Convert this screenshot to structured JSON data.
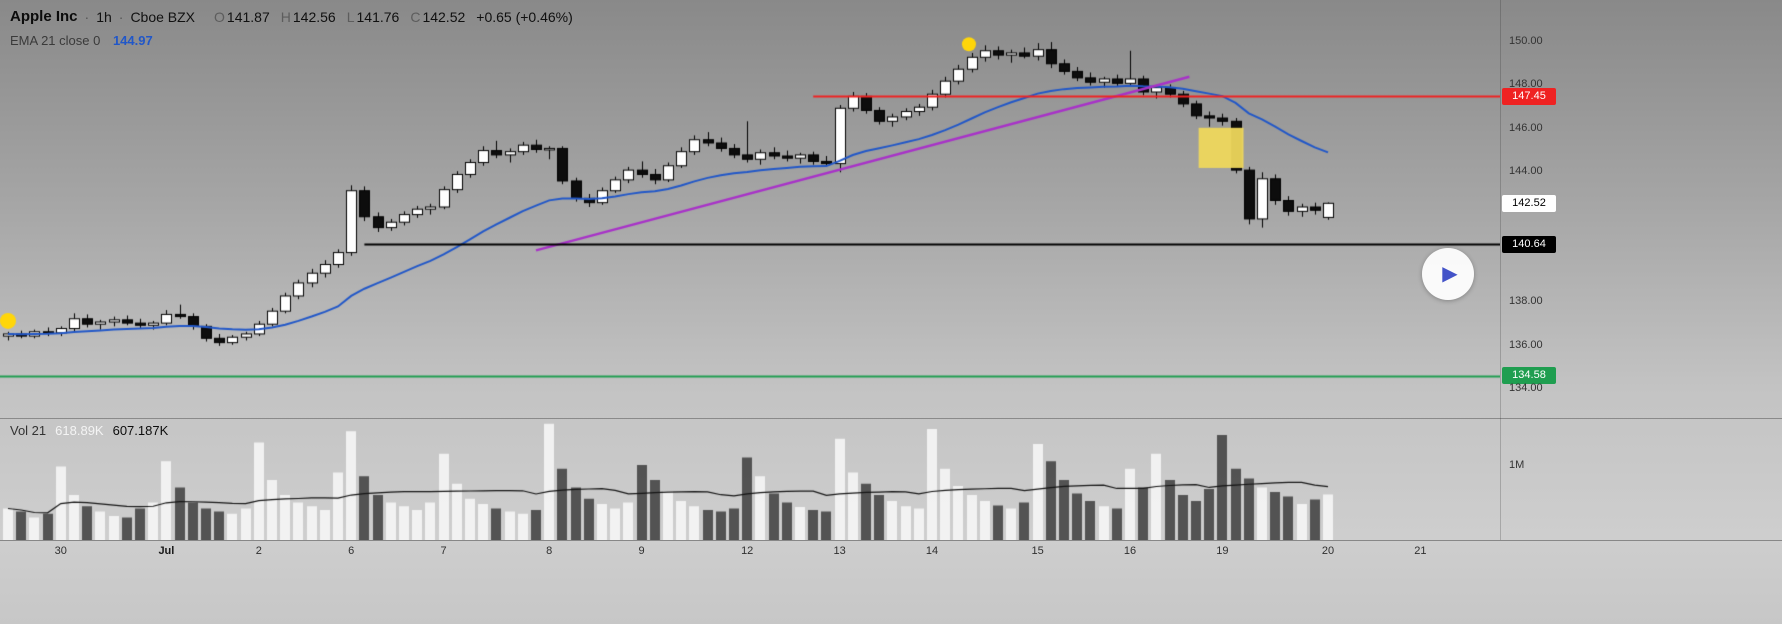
{
  "header": {
    "symbol": "Apple Inc",
    "separator": "·",
    "timeframe": "1h",
    "exchange": "Cboe BZX",
    "ohlc": [
      {
        "label": "O",
        "value": "141.87"
      },
      {
        "label": "H",
        "value": "142.56"
      },
      {
        "label": "L",
        "value": "141.76"
      },
      {
        "label": "C",
        "value": "142.52"
      }
    ],
    "change": "+0.65 (+0.46%)"
  },
  "indicator_legend": {
    "name": "EMA 21 close 0",
    "value": "144.97",
    "value_color": "#2157c8"
  },
  "volume_legend": {
    "name": "Vol 21",
    "ma_value": "618.89K",
    "last_value": "607.187K"
  },
  "price_axis": {
    "ticks": [
      {
        "text": "150.00",
        "price": 150
      },
      {
        "text": "148.00",
        "price": 148
      },
      {
        "text": "146.00",
        "price": 146
      },
      {
        "text": "144.00",
        "price": 144
      },
      {
        "text": "138.00",
        "price": 138
      },
      {
        "text": "136.00",
        "price": 136
      },
      {
        "text": "134.00",
        "price": 134
      }
    ],
    "badges": [
      {
        "text": "147.45",
        "price": 147.45,
        "bg": "#ef2222",
        "fg": "#ffffff"
      },
      {
        "text": "142.52",
        "price": 142.52,
        "bg": "#ffffff",
        "fg": "#000000"
      },
      {
        "text": "140.64",
        "price": 140.64,
        "bg": "#000000",
        "fg": "#ffffff"
      },
      {
        "text": "134.58",
        "price": 134.58,
        "bg": "#1f9e50",
        "fg": "#ffffff"
      }
    ],
    "volume_tick": "1M"
  },
  "time_axis": {
    "labels": [
      {
        "text": "30",
        "index": 4
      },
      {
        "text": "Jul",
        "index": 12,
        "bold": true
      },
      {
        "text": "2",
        "index": 19
      },
      {
        "text": "6",
        "index": 26
      },
      {
        "text": "7",
        "index": 33
      },
      {
        "text": "8",
        "index": 41
      },
      {
        "text": "9",
        "index": 48
      },
      {
        "text": "12",
        "index": 56
      },
      {
        "text": "13",
        "index": 63
      },
      {
        "text": "14",
        "index": 70
      },
      {
        "text": "15",
        "index": 78
      },
      {
        "text": "16",
        "index": 85
      },
      {
        "text": "19",
        "index": 92
      },
      {
        "text": "20",
        "index": 100
      },
      {
        "text": "21",
        "index": 107
      }
    ]
  },
  "play_button": {
    "symbol": "▶",
    "color": "#4353c8"
  },
  "chart_data": {
    "type": "candlestick",
    "symbol": "Apple Inc",
    "interval": "1h",
    "exchange": "Cboe BZX",
    "price_range_visible": [
      134.0,
      150.0
    ],
    "candles": [
      [
        136.4,
        136.6,
        136.2,
        136.5
      ],
      [
        136.5,
        136.65,
        136.3,
        136.4
      ],
      [
        136.4,
        136.7,
        136.3,
        136.6
      ],
      [
        136.6,
        136.8,
        136.4,
        136.55
      ],
      [
        136.55,
        136.85,
        136.4,
        136.75
      ],
      [
        136.75,
        137.45,
        136.6,
        137.2
      ],
      [
        137.2,
        137.4,
        136.8,
        136.95
      ],
      [
        136.95,
        137.15,
        136.7,
        137.05
      ],
      [
        137.05,
        137.3,
        136.85,
        137.15
      ],
      [
        137.15,
        137.35,
        136.9,
        137.0
      ],
      [
        137.0,
        137.2,
        136.75,
        136.9
      ],
      [
        136.9,
        137.1,
        136.7,
        137.0
      ],
      [
        137.0,
        137.6,
        136.9,
        137.4
      ],
      [
        137.4,
        137.85,
        137.2,
        137.3
      ],
      [
        137.3,
        137.45,
        136.7,
        136.85
      ],
      [
        136.85,
        136.95,
        136.15,
        136.3
      ],
      [
        136.3,
        136.5,
        135.95,
        136.1
      ],
      [
        136.1,
        136.45,
        136.0,
        136.35
      ],
      [
        136.35,
        136.6,
        136.2,
        136.5
      ],
      [
        136.5,
        137.1,
        136.4,
        136.95
      ],
      [
        136.95,
        137.7,
        136.85,
        137.55
      ],
      [
        137.55,
        138.4,
        137.45,
        138.25
      ],
      [
        138.25,
        139.0,
        138.1,
        138.85
      ],
      [
        138.85,
        139.5,
        138.65,
        139.3
      ],
      [
        139.3,
        139.9,
        139.1,
        139.7
      ],
      [
        139.7,
        140.4,
        139.55,
        140.25
      ],
      [
        140.25,
        143.35,
        140.1,
        143.1
      ],
      [
        143.1,
        143.3,
        141.7,
        141.9
      ],
      [
        141.9,
        142.1,
        141.2,
        141.4
      ],
      [
        141.4,
        141.8,
        141.25,
        141.65
      ],
      [
        141.65,
        142.15,
        141.5,
        142.0
      ],
      [
        142.0,
        142.4,
        141.85,
        142.25
      ],
      [
        142.25,
        142.5,
        142.0,
        142.35
      ],
      [
        142.35,
        143.3,
        142.25,
        143.15
      ],
      [
        143.15,
        144.0,
        143.0,
        143.85
      ],
      [
        143.85,
        144.55,
        143.7,
        144.4
      ],
      [
        144.4,
        145.15,
        144.25,
        144.95
      ],
      [
        144.95,
        145.4,
        144.6,
        144.75
      ],
      [
        144.75,
        145.05,
        144.4,
        144.9
      ],
      [
        144.9,
        145.35,
        144.75,
        145.2
      ],
      [
        145.2,
        145.45,
        144.85,
        145.0
      ],
      [
        145.0,
        145.15,
        144.55,
        145.05
      ],
      [
        145.05,
        145.15,
        143.4,
        143.55
      ],
      [
        143.55,
        143.7,
        142.6,
        142.75
      ],
      [
        142.75,
        142.95,
        142.35,
        142.55
      ],
      [
        142.55,
        143.25,
        142.45,
        143.1
      ],
      [
        143.1,
        143.75,
        143.0,
        143.6
      ],
      [
        143.6,
        144.2,
        143.45,
        144.05
      ],
      [
        144.05,
        144.45,
        143.7,
        143.85
      ],
      [
        143.85,
        144.1,
        143.4,
        143.6
      ],
      [
        143.6,
        144.4,
        143.5,
        144.25
      ],
      [
        144.25,
        145.1,
        144.15,
        144.9
      ],
      [
        144.9,
        145.65,
        144.75,
        145.45
      ],
      [
        145.45,
        145.8,
        145.15,
        145.3
      ],
      [
        145.3,
        145.55,
        144.9,
        145.05
      ],
      [
        145.05,
        145.25,
        144.6,
        144.75
      ],
      [
        144.75,
        146.3,
        144.4,
        144.55
      ],
      [
        144.55,
        145.0,
        144.3,
        144.85
      ],
      [
        144.85,
        145.1,
        144.55,
        144.7
      ],
      [
        144.7,
        144.95,
        144.45,
        144.6
      ],
      [
        144.6,
        144.85,
        144.35,
        144.75
      ],
      [
        144.75,
        144.9,
        144.3,
        144.45
      ],
      [
        144.45,
        144.7,
        144.2,
        144.35
      ],
      [
        144.35,
        147.05,
        143.95,
        146.9
      ],
      [
        146.9,
        147.65,
        146.75,
        147.45
      ],
      [
        147.45,
        147.6,
        146.65,
        146.8
      ],
      [
        146.8,
        146.95,
        146.15,
        146.3
      ],
      [
        146.3,
        146.65,
        146.05,
        146.5
      ],
      [
        146.5,
        146.9,
        146.35,
        146.75
      ],
      [
        146.75,
        147.1,
        146.55,
        146.95
      ],
      [
        146.95,
        147.75,
        146.8,
        147.55
      ],
      [
        147.55,
        148.35,
        147.4,
        148.15
      ],
      [
        148.15,
        148.9,
        148.0,
        148.7
      ],
      [
        148.7,
        149.45,
        148.55,
        149.25
      ],
      [
        149.25,
        149.8,
        149.05,
        149.55
      ],
      [
        149.55,
        149.75,
        149.15,
        149.35
      ],
      [
        149.35,
        149.6,
        149.0,
        149.45
      ],
      [
        149.45,
        149.7,
        149.2,
        149.3
      ],
      [
        149.3,
        149.9,
        149.1,
        149.6
      ],
      [
        149.6,
        149.95,
        148.75,
        148.95
      ],
      [
        148.95,
        149.15,
        148.45,
        148.6
      ],
      [
        148.6,
        148.8,
        148.15,
        148.3
      ],
      [
        148.3,
        148.55,
        147.95,
        148.1
      ],
      [
        148.1,
        148.35,
        147.85,
        148.25
      ],
      [
        148.25,
        148.45,
        147.9,
        148.05
      ],
      [
        148.05,
        149.55,
        147.95,
        148.25
      ],
      [
        148.25,
        148.4,
        147.5,
        147.65
      ],
      [
        147.65,
        147.95,
        147.35,
        147.85
      ],
      [
        147.85,
        148.0,
        147.4,
        147.55
      ],
      [
        147.55,
        147.7,
        146.95,
        147.1
      ],
      [
        147.1,
        147.25,
        146.4,
        146.55
      ],
      [
        146.55,
        146.75,
        146.05,
        146.45
      ],
      [
        146.45,
        146.65,
        146.1,
        146.3
      ],
      [
        146.3,
        146.45,
        143.9,
        144.05
      ],
      [
        144.05,
        144.2,
        141.55,
        141.8
      ],
      [
        141.8,
        143.95,
        141.4,
        143.65
      ],
      [
        143.65,
        143.85,
        142.45,
        142.65
      ],
      [
        142.65,
        142.85,
        141.95,
        142.15
      ],
      [
        142.15,
        142.5,
        141.9,
        142.35
      ],
      [
        142.35,
        142.55,
        142.0,
        142.2
      ],
      [
        141.87,
        142.56,
        141.76,
        142.52
      ]
    ],
    "volumes_k": [
      420,
      380,
      300,
      350,
      980,
      600,
      450,
      380,
      320,
      300,
      420,
      500,
      1050,
      700,
      500,
      420,
      380,
      350,
      420,
      1300,
      800,
      600,
      500,
      450,
      400,
      900,
      1450,
      850,
      600,
      500,
      450,
      400,
      500,
      1150,
      750,
      550,
      480,
      420,
      380,
      350,
      400,
      1550,
      950,
      700,
      550,
      480,
      420,
      500,
      1000,
      800,
      650,
      520,
      450,
      400,
      380,
      420,
      1100,
      850,
      620,
      500,
      440,
      400,
      380,
      1350,
      900,
      750,
      600,
      520,
      450,
      420,
      1480,
      950,
      720,
      600,
      520,
      460,
      420,
      500,
      1280,
      1050,
      800,
      620,
      520,
      450,
      420,
      950,
      700,
      1150,
      800,
      600,
      520,
      680,
      1400,
      950,
      820,
      700,
      640,
      580,
      480,
      540,
      607
    ],
    "overlays": {
      "ema": {
        "period": 21,
        "source": "close",
        "offset": 0,
        "color": "#2157c8"
      },
      "trendline": {
        "from": {
          "index": 40,
          "price": 140.35
        },
        "to": {
          "index": 89.5,
          "price": 148.35
        },
        "color": "#a832c8",
        "width": 2.5
      },
      "hlines": [
        {
          "price": 147.45,
          "from_index": 61,
          "color": "#ef2222",
          "width": 2
        },
        {
          "price": 140.64,
          "from_index": 27,
          "color": "#000000",
          "width": 2
        },
        {
          "price": 134.58,
          "from_index": 0,
          "color": "#1f9e50",
          "width": 2
        }
      ],
      "rect": {
        "from_index": 90.2,
        "to_index": 93.6,
        "price_top": 146.0,
        "price_bottom": 144.15,
        "color": "rgba(238,215,92,0.95)"
      },
      "markers": [
        {
          "index": 0,
          "price": 137.1,
          "color": "#ffd60a",
          "radius": 8
        },
        {
          "index": 72.8,
          "price": 149.85,
          "color": "#ffd60a",
          "radius": 7
        }
      ],
      "volume_ma": {
        "period": 21,
        "color": "#141414"
      }
    }
  }
}
